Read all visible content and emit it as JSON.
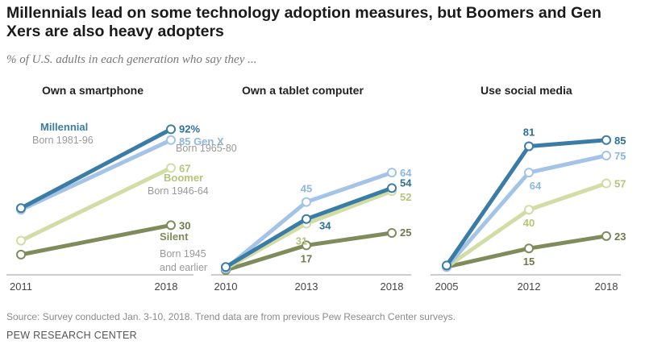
{
  "title": "Millennials lead on some technology adoption measures, but Boomers and Gen Xers are also heavy adopters",
  "subtitle": "% of U.S. adults in each generation who say they ...",
  "source": "Source: Survey conducted Jan. 3-10, 2018. Trend data are from previous Pew Research Center surveys.",
  "organization": "PEW RESEARCH CENTER",
  "colors": {
    "millennial": "#3a7ca5",
    "genx": "#a3c4e6",
    "boomer": "#d2dca5",
    "silent": "#7f8b5a",
    "axis": "#9a9a9a"
  },
  "generations": {
    "millennial": {
      "name": "Millennial",
      "born": "Born 1981-96"
    },
    "genx": {
      "name": "Gen X",
      "born": "Born 1965-80"
    },
    "boomer": {
      "name": "Boomer",
      "born": "Born 1946-64"
    },
    "silent": {
      "name": "Silent",
      "born_line1": "Born 1945",
      "born_line2": "and earlier"
    }
  },
  "chart_data": [
    {
      "type": "line",
      "title": "Own a smartphone",
      "x": [
        "2011",
        "2018"
      ],
      "ylim": [
        0,
        100
      ],
      "series": [
        {
          "key": "silent",
          "name": "Silent",
          "values": [
            11,
            30
          ],
          "labels": [
            "",
            "30"
          ]
        },
        {
          "key": "boomer",
          "name": "Boomer",
          "values": [
            20,
            67
          ],
          "labels": [
            "",
            "67"
          ]
        },
        {
          "key": "genx",
          "name": "Gen X",
          "values": [
            40,
            85
          ],
          "labels": [
            "",
            "85 Gen X"
          ]
        },
        {
          "key": "millennial",
          "name": "Millennial",
          "values": [
            41,
            92
          ],
          "labels": [
            "",
            "92%"
          ]
        }
      ]
    },
    {
      "type": "line",
      "title": "Own a tablet computer",
      "x": [
        "2010",
        "2013",
        "2018"
      ],
      "ylim": [
        0,
        100
      ],
      "series": [
        {
          "key": "silent",
          "name": "Silent",
          "values": [
            1,
            17,
            25
          ],
          "labels": [
            "",
            "17",
            "25"
          ]
        },
        {
          "key": "boomer",
          "name": "Boomer",
          "values": [
            2,
            31,
            52
          ],
          "labels": [
            "",
            "31",
            "52"
          ]
        },
        {
          "key": "genx",
          "name": "Gen X",
          "values": [
            2,
            45,
            64
          ],
          "labels": [
            "",
            "45",
            "64"
          ]
        },
        {
          "key": "millennial",
          "name": "Millennial",
          "values": [
            3,
            34,
            54
          ],
          "labels": [
            "",
            "34",
            "54"
          ]
        }
      ]
    },
    {
      "type": "line",
      "title": "Use social media",
      "x": [
        "2005",
        "2012",
        "2018"
      ],
      "ylim": [
        0,
        100
      ],
      "series": [
        {
          "key": "silent",
          "name": "Silent",
          "values": [
            3,
            15,
            23
          ],
          "labels": [
            "",
            "15",
            "23"
          ]
        },
        {
          "key": "boomer",
          "name": "Boomer",
          "values": [
            3,
            40,
            57
          ],
          "labels": [
            "",
            "40",
            "57"
          ]
        },
        {
          "key": "genx",
          "name": "Gen X",
          "values": [
            3,
            64,
            75
          ],
          "labels": [
            "",
            "64",
            "75"
          ]
        },
        {
          "key": "millennial",
          "name": "Millennial",
          "values": [
            4,
            81,
            85
          ],
          "labels": [
            "",
            "81",
            "85"
          ]
        }
      ]
    }
  ]
}
